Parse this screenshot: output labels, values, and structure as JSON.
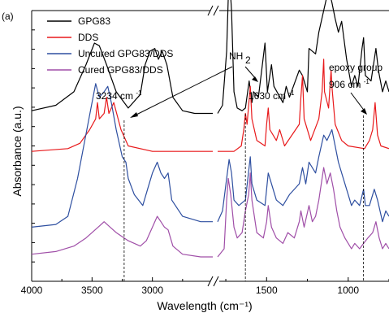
{
  "chart_data": {
    "type": "line",
    "panel_label": "(a)",
    "xlabel": "Wavelength (cm⁻¹)",
    "ylabel": "Absorbance (a.u.)",
    "x_reversed": true,
    "x_axis_break": [
      2500,
      1800
    ],
    "xlim_left": [
      4000,
      2500
    ],
    "xlim_right": [
      1800,
      750
    ],
    "x_ticks": [
      4000,
      3500,
      3000,
      1500,
      1000
    ],
    "legend_position": "top-left",
    "series": [
      {
        "name": "GPG83",
        "color": "#000000",
        "points": [
          [
            4000,
            0.63
          ],
          [
            3800,
            0.65
          ],
          [
            3650,
            0.7
          ],
          [
            3550,
            0.8
          ],
          [
            3480,
            0.88
          ],
          [
            3440,
            0.87
          ],
          [
            3380,
            0.8
          ],
          [
            3300,
            0.7
          ],
          [
            3200,
            0.64
          ],
          [
            3100,
            0.69
          ],
          [
            3060,
            0.8
          ],
          [
            3020,
            0.85
          ],
          [
            2980,
            0.86
          ],
          [
            2950,
            0.82
          ],
          [
            2920,
            0.85
          ],
          [
            2880,
            0.8
          ],
          [
            2830,
            0.68
          ],
          [
            2750,
            0.63
          ],
          [
            2650,
            0.62
          ],
          [
            2500,
            0.62
          ],
          [
            1800,
            0.62
          ],
          [
            1770,
            0.65
          ],
          [
            1745,
            0.85
          ],
          [
            1730,
            1.15
          ],
          [
            1715,
            1.0
          ],
          [
            1700,
            0.7
          ],
          [
            1680,
            0.64
          ],
          [
            1650,
            0.63
          ],
          [
            1630,
            0.64
          ],
          [
            1607,
            0.74
          ],
          [
            1590,
            0.66
          ],
          [
            1580,
            0.7
          ],
          [
            1550,
            0.68
          ],
          [
            1510,
            0.88
          ],
          [
            1495,
            0.7
          ],
          [
            1470,
            0.8
          ],
          [
            1455,
            0.72
          ],
          [
            1400,
            0.66
          ],
          [
            1380,
            0.72
          ],
          [
            1360,
            0.68
          ],
          [
            1300,
            0.78
          ],
          [
            1280,
            0.76
          ],
          [
            1250,
            0.7
          ],
          [
            1240,
            0.86
          ],
          [
            1200,
            0.84
          ],
          [
            1180,
            0.92
          ],
          [
            1150,
            1.0
          ],
          [
            1120,
            1.08
          ],
          [
            1100,
            1.03
          ],
          [
            1080,
            0.97
          ],
          [
            1060,
            0.92
          ],
          [
            1040,
            0.96
          ],
          [
            1010,
            0.82
          ],
          [
            980,
            0.72
          ],
          [
            960,
            0.76
          ],
          [
            940,
            0.72
          ],
          [
            915,
            0.86
          ],
          [
            906,
            0.9
          ],
          [
            895,
            0.76
          ],
          [
            860,
            0.74
          ],
          [
            830,
            0.86
          ],
          [
            815,
            0.78
          ],
          [
            790,
            0.7
          ],
          [
            770,
            0.74
          ],
          [
            750,
            0.7
          ]
        ]
      },
      {
        "name": "DDS",
        "color": "#e8191b",
        "points": [
          [
            4000,
            0.48
          ],
          [
            3700,
            0.49
          ],
          [
            3600,
            0.51
          ],
          [
            3520,
            0.56
          ],
          [
            3470,
            0.6
          ],
          [
            3455,
            0.66
          ],
          [
            3440,
            0.6
          ],
          [
            3400,
            0.62
          ],
          [
            3380,
            0.68
          ],
          [
            3360,
            0.62
          ],
          [
            3340,
            0.64
          ],
          [
            3320,
            0.66
          ],
          [
            3260,
            0.56
          ],
          [
            3200,
            0.5
          ],
          [
            3000,
            0.48
          ],
          [
            2500,
            0.48
          ],
          [
            1800,
            0.48
          ],
          [
            1700,
            0.48
          ],
          [
            1655,
            0.5
          ],
          [
            1640,
            0.56
          ],
          [
            1630,
            0.62
          ],
          [
            1620,
            0.58
          ],
          [
            1600,
            0.72
          ],
          [
            1590,
            0.6
          ],
          [
            1560,
            0.52
          ],
          [
            1510,
            0.5
          ],
          [
            1500,
            0.58
          ],
          [
            1490,
            0.64
          ],
          [
            1480,
            0.56
          ],
          [
            1440,
            0.52
          ],
          [
            1420,
            0.56
          ],
          [
            1390,
            0.5
          ],
          [
            1300,
            0.58
          ],
          [
            1290,
            0.68
          ],
          [
            1280,
            0.76
          ],
          [
            1270,
            0.6
          ],
          [
            1230,
            0.52
          ],
          [
            1180,
            0.6
          ],
          [
            1160,
            0.7
          ],
          [
            1150,
            0.82
          ],
          [
            1145,
            0.7
          ],
          [
            1120,
            0.64
          ],
          [
            1105,
            0.78
          ],
          [
            1100,
            0.72
          ],
          [
            1080,
            0.58
          ],
          [
            1040,
            0.52
          ],
          [
            1000,
            0.5
          ],
          [
            900,
            0.49
          ],
          [
            870,
            0.52
          ],
          [
            850,
            0.56
          ],
          [
            835,
            0.66
          ],
          [
            820,
            0.54
          ],
          [
            800,
            0.5
          ],
          [
            750,
            0.49
          ]
        ]
      },
      {
        "name": "Uncured GPG83/DDS",
        "color": "#2e4fa0",
        "points": [
          [
            4000,
            0.2
          ],
          [
            3800,
            0.21
          ],
          [
            3700,
            0.24
          ],
          [
            3620,
            0.38
          ],
          [
            3560,
            0.52
          ],
          [
            3500,
            0.66
          ],
          [
            3470,
            0.73
          ],
          [
            3440,
            0.68
          ],
          [
            3400,
            0.7
          ],
          [
            3370,
            0.72
          ],
          [
            3340,
            0.66
          ],
          [
            3300,
            0.56
          ],
          [
            3250,
            0.46
          ],
          [
            3220,
            0.44
          ],
          [
            3200,
            0.38
          ],
          [
            3150,
            0.32
          ],
          [
            3080,
            0.28
          ],
          [
            3040,
            0.34
          ],
          [
            3000,
            0.4
          ],
          [
            2960,
            0.44
          ],
          [
            2930,
            0.4
          ],
          [
            2900,
            0.38
          ],
          [
            2870,
            0.4
          ],
          [
            2840,
            0.3
          ],
          [
            2750,
            0.24
          ],
          [
            2600,
            0.22
          ],
          [
            2500,
            0.22
          ],
          [
            1800,
            0.22
          ],
          [
            1770,
            0.26
          ],
          [
            1745,
            0.38
          ],
          [
            1730,
            0.45
          ],
          [
            1715,
            0.4
          ],
          [
            1700,
            0.3
          ],
          [
            1670,
            0.28
          ],
          [
            1630,
            0.3
          ],
          [
            1600,
            0.46
          ],
          [
            1590,
            0.36
          ],
          [
            1560,
            0.3
          ],
          [
            1510,
            0.28
          ],
          [
            1490,
            0.4
          ],
          [
            1470,
            0.36
          ],
          [
            1440,
            0.3
          ],
          [
            1400,
            0.28
          ],
          [
            1360,
            0.32
          ],
          [
            1300,
            0.36
          ],
          [
            1280,
            0.42
          ],
          [
            1260,
            0.36
          ],
          [
            1240,
            0.44
          ],
          [
            1200,
            0.4
          ],
          [
            1180,
            0.46
          ],
          [
            1150,
            0.54
          ],
          [
            1130,
            0.52
          ],
          [
            1100,
            0.56
          ],
          [
            1080,
            0.5
          ],
          [
            1060,
            0.44
          ],
          [
            1040,
            0.4
          ],
          [
            1000,
            0.32
          ],
          [
            980,
            0.28
          ],
          [
            960,
            0.3
          ],
          [
            930,
            0.28
          ],
          [
            906,
            0.34
          ],
          [
            895,
            0.28
          ],
          [
            870,
            0.28
          ],
          [
            840,
            0.34
          ],
          [
            820,
            0.3
          ],
          [
            790,
            0.22
          ],
          [
            770,
            0.26
          ],
          [
            750,
            0.24
          ]
        ]
      },
      {
        "name": "Cured GPG83/DDS",
        "color": "#a04fa8",
        "points": [
          [
            4000,
            0.1
          ],
          [
            3800,
            0.11
          ],
          [
            3650,
            0.13
          ],
          [
            3550,
            0.16
          ],
          [
            3450,
            0.2
          ],
          [
            3400,
            0.22
          ],
          [
            3350,
            0.2
          ],
          [
            3300,
            0.18
          ],
          [
            3200,
            0.15
          ],
          [
            3100,
            0.13
          ],
          [
            3050,
            0.15
          ],
          [
            3000,
            0.2
          ],
          [
            2960,
            0.24
          ],
          [
            2930,
            0.22
          ],
          [
            2900,
            0.2
          ],
          [
            2870,
            0.19
          ],
          [
            2830,
            0.13
          ],
          [
            2750,
            0.1
          ],
          [
            2600,
            0.09
          ],
          [
            2500,
            0.09
          ],
          [
            1800,
            0.09
          ],
          [
            1760,
            0.12
          ],
          [
            1745,
            0.3
          ],
          [
            1735,
            0.38
          ],
          [
            1720,
            0.32
          ],
          [
            1700,
            0.2
          ],
          [
            1680,
            0.16
          ],
          [
            1650,
            0.18
          ],
          [
            1630,
            0.26
          ],
          [
            1610,
            0.32
          ],
          [
            1600,
            0.4
          ],
          [
            1590,
            0.3
          ],
          [
            1560,
            0.18
          ],
          [
            1520,
            0.16
          ],
          [
            1500,
            0.22
          ],
          [
            1490,
            0.28
          ],
          [
            1470,
            0.2
          ],
          [
            1440,
            0.16
          ],
          [
            1400,
            0.14
          ],
          [
            1370,
            0.18
          ],
          [
            1330,
            0.16
          ],
          [
            1300,
            0.22
          ],
          [
            1290,
            0.26
          ],
          [
            1270,
            0.2
          ],
          [
            1240,
            0.28
          ],
          [
            1220,
            0.22
          ],
          [
            1200,
            0.24
          ],
          [
            1180,
            0.3
          ],
          [
            1150,
            0.42
          ],
          [
            1130,
            0.36
          ],
          [
            1110,
            0.4
          ],
          [
            1090,
            0.34
          ],
          [
            1070,
            0.26
          ],
          [
            1050,
            0.2
          ],
          [
            1020,
            0.16
          ],
          [
            1000,
            0.14
          ],
          [
            980,
            0.12
          ],
          [
            960,
            0.14
          ],
          [
            930,
            0.12
          ],
          [
            906,
            0.14
          ],
          [
            880,
            0.16
          ],
          [
            850,
            0.18
          ],
          [
            830,
            0.22
          ],
          [
            810,
            0.16
          ],
          [
            790,
            0.12
          ],
          [
            770,
            0.14
          ],
          [
            750,
            0.12
          ]
        ]
      }
    ],
    "annotations": {
      "nh2_label": "NH",
      "nh2_subscript": "2",
      "peak_3234": "3234 cm",
      "peak_1630": "1630 cm",
      "peak_906_group": "epoxy group",
      "peak_906": "906 cm",
      "superscript_minus_one": "-1",
      "peak_positions": [
        3234,
        1630,
        906
      ]
    }
  }
}
